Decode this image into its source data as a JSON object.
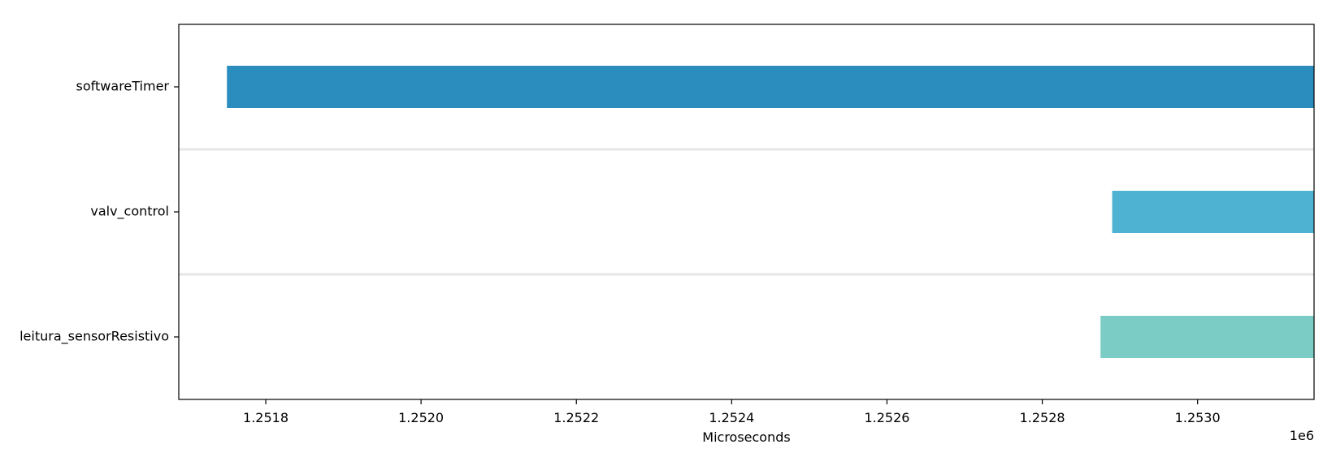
{
  "chart_data": {
    "type": "bar",
    "orientation": "horizontal",
    "title": "",
    "xlabel": "Microseconds",
    "ylabel": "",
    "x_offset_label": "1e6",
    "xlim": [
      1251688,
      1253150
    ],
    "x_ticks": [
      1251800,
      1252000,
      1252200,
      1252400,
      1252600,
      1252800,
      1253000
    ],
    "x_tick_labels": [
      "1.2518",
      "1.2520",
      "1.2522",
      "1.2524",
      "1.2526",
      "1.2528",
      "1.2530"
    ],
    "categories": [
      "softwareTimer",
      "valv_control",
      "leitura_sensorResistivo"
    ],
    "bars": [
      {
        "category": "softwareTimer",
        "start": 1251750,
        "end": 1253150,
        "color": "#2b8cbe"
      },
      {
        "category": "valv_control",
        "start": 1252890,
        "end": 1253150,
        "color": "#4eb3d3"
      },
      {
        "category": "leitura_sensorResistivo",
        "start": 1252875,
        "end": 1253150,
        "color": "#7bccc4"
      }
    ],
    "grid": false,
    "row_separators": true,
    "legend": "none"
  }
}
